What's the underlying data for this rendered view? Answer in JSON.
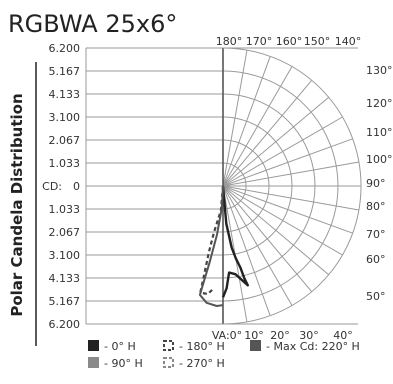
{
  "chart_data": {
    "type": "polar",
    "title": "RGBWA 25x6°",
    "ylabel": "Polar Candela Distribution",
    "center_label": "CD:",
    "cd_ticks": [
      "6.200",
      "5.167",
      "4.133",
      "3.100",
      "2.067",
      "1.033",
      "0",
      "1.033",
      "2.067",
      "3.100",
      "4.133",
      "5.167",
      "6.200"
    ],
    "cd_max": 6.2,
    "top_angle_labels": [
      "180°",
      "170°",
      "160°",
      "150°",
      "140°"
    ],
    "right_angle_labels": [
      "130°",
      "120°",
      "110°",
      "100°",
      "90°",
      "80°",
      "70°",
      "60°",
      "50°"
    ],
    "bottom_angle_labels": [
      "VA:0°",
      "10°",
      "20°",
      "30°",
      "40°"
    ],
    "grid": true,
    "series": [
      {
        "name": "- 0° H",
        "swatch": "solid-black",
        "points": [
          [
            0,
            0
          ],
          [
            5,
            1.7
          ],
          [
            8,
            2.8
          ],
          [
            10,
            3.3
          ],
          [
            12,
            3.75
          ],
          [
            13,
            4.25
          ],
          [
            14,
            4.6
          ],
          [
            8,
            4.0
          ],
          [
            4,
            3.9
          ],
          [
            2,
            4.6
          ],
          [
            0,
            5.0
          ]
        ]
      },
      {
        "name": "- 180° H",
        "swatch": "dashed-black",
        "points": [
          [
            0,
            0
          ],
          [
            -5,
            1.1
          ],
          [
            -11,
            2.1
          ],
          [
            -12,
            3.0
          ],
          [
            -12,
            4.0
          ],
          [
            -12,
            4.9
          ],
          [
            -8,
            4.9
          ],
          [
            -5,
            4.6
          ]
        ]
      },
      {
        "name": "- Max Cd: 220° H",
        "swatch": "solid-dark-gray",
        "points": [
          [
            0,
            0
          ],
          [
            -3,
            1.0
          ],
          [
            -7,
            2.2
          ],
          [
            -10,
            3.5
          ],
          [
            -12,
            5.0
          ],
          [
            -8,
            5.3
          ],
          [
            -3,
            5.4
          ],
          [
            0,
            5.35
          ]
        ]
      },
      {
        "name": "- 90° H",
        "swatch": "solid-light-gray",
        "points": []
      },
      {
        "name": "- 270° H",
        "swatch": "dashed-gray",
        "points": []
      }
    ],
    "colors": {
      "grid": "#9a9a9a",
      "axis": "#555555",
      "series_0": "#222222",
      "series_180": "#444444",
      "series_max": "#555555",
      "series_90": "#8a8a8a",
      "series_270": "#8a8a8a"
    }
  }
}
